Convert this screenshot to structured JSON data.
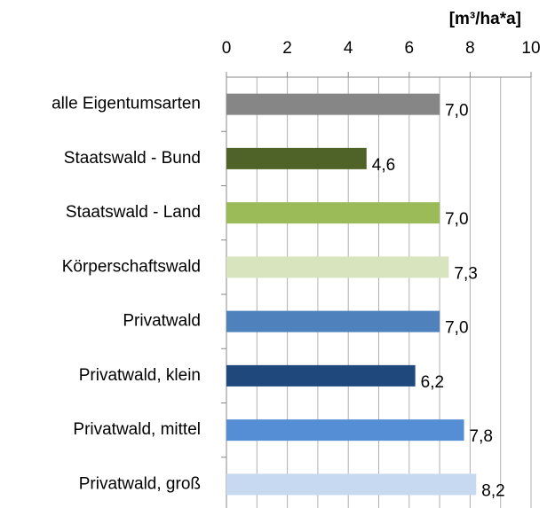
{
  "chart_data": {
    "type": "barh",
    "unit_label": "[m³/ha*a]",
    "categories": [
      "alle Eigentumsarten",
      "Staatswald - Bund",
      "Staatswald - Land",
      "Körperschaftswald",
      "Privatwald",
      "Privatwald, klein",
      "Privatwald, mittel",
      "Privatwald, groß"
    ],
    "values": [
      7.0,
      4.6,
      7.0,
      7.3,
      7.0,
      6.2,
      7.8,
      8.2
    ],
    "value_labels": [
      "7,0",
      "4,6",
      "7,0",
      "7,3",
      "7,0",
      "6,2",
      "7,8",
      "8,2"
    ],
    "colors": [
      "#868686",
      "#4f6228",
      "#9bbb59",
      "#d7e4bd",
      "#4f81bd",
      "#1f497d",
      "#558ed5",
      "#c6d9f1"
    ],
    "xlim": [
      0,
      10
    ],
    "xticks": [
      0,
      2,
      4,
      6,
      8,
      10
    ],
    "minor_xticks": [
      1,
      3,
      5,
      7,
      9
    ],
    "grid": true,
    "axis_position": "top"
  }
}
